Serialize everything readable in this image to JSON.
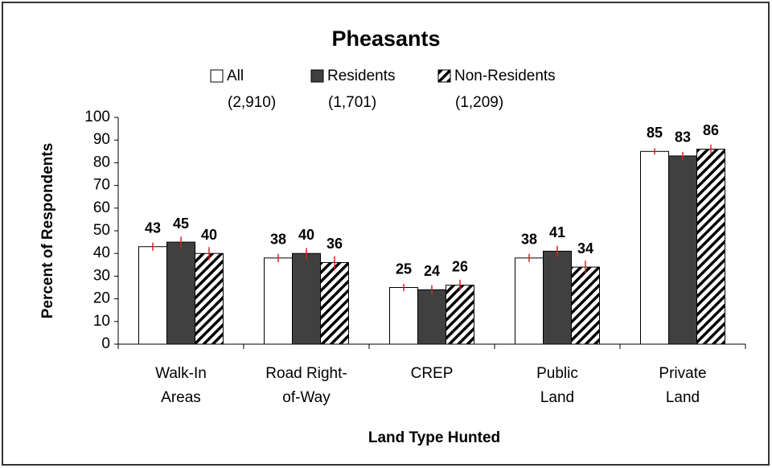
{
  "chart_data": {
    "type": "bar",
    "title": "Pheasants",
    "x_label": "Land Type Hunted",
    "y_label": "Percent of Respondents",
    "categories": [
      [
        "Walk-In",
        "Areas"
      ],
      [
        "Road Right-",
        "of-Way"
      ],
      [
        "CREP"
      ],
      [
        "Public",
        "Land"
      ],
      [
        "Private",
        "Land"
      ]
    ],
    "series": [
      {
        "name": "All",
        "sample_size": "(2,910)",
        "color": "#ffffff",
        "values": [
          43,
          38,
          25,
          38,
          85
        ],
        "errors": [
          1.8,
          1.8,
          1.6,
          1.8,
          1.4
        ]
      },
      {
        "name": "Residents",
        "sample_size": "(1,701)",
        "color": "#404040",
        "values": [
          45,
          40,
          24,
          41,
          83
        ],
        "errors": [
          2.4,
          2.4,
          2.0,
          2.4,
          1.8
        ]
      },
      {
        "name": "Non-Residents",
        "sample_size": "(1,209)",
        "color": "hatch",
        "values": [
          40,
          36,
          26,
          34,
          86
        ],
        "errors": [
          2.8,
          2.8,
          2.4,
          2.8,
          2.0
        ]
      }
    ],
    "ylim": [
      0,
      100
    ],
    "yticks": [
      0,
      10,
      20,
      30,
      40,
      50,
      60,
      70,
      80,
      90,
      100
    ],
    "error_color": "#e02020",
    "grid": false
  }
}
